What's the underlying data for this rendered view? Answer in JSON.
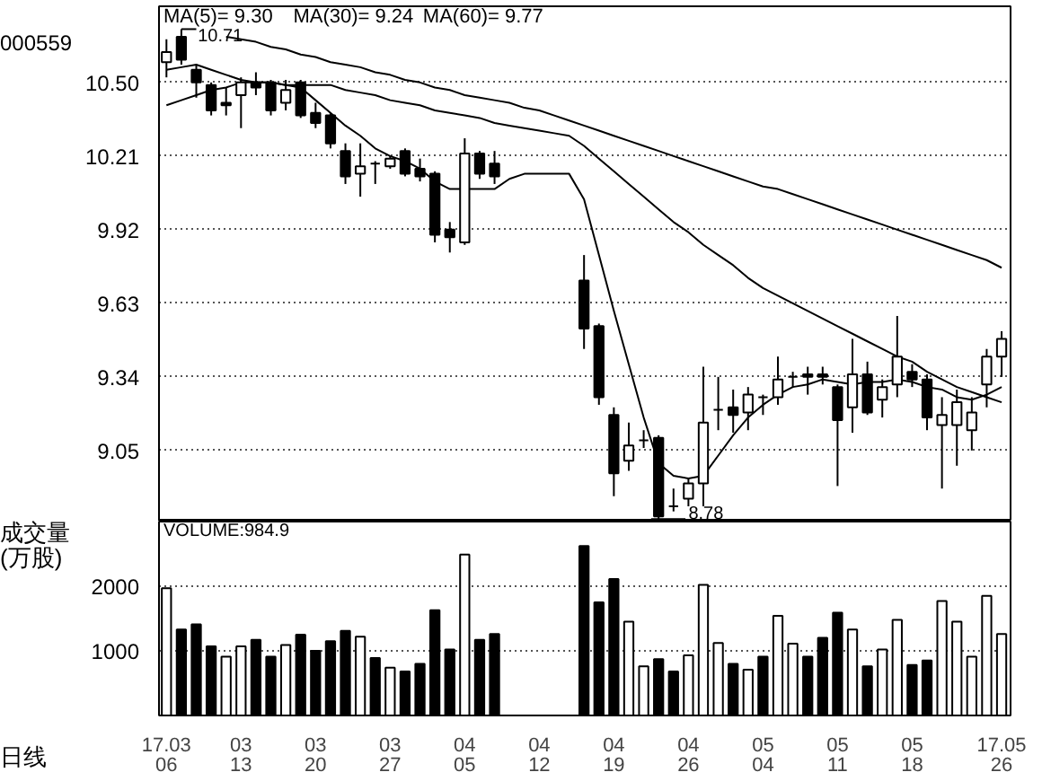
{
  "chart_data": [
    {
      "type": "candlestick",
      "subtitle": "000559",
      "tick_labels": "y",
      "grid": "y",
      "categories": [
        null,
        null,
        null,
        null,
        null,
        null,
        null,
        null,
        null,
        null,
        null,
        null,
        null,
        null,
        null,
        null,
        null,
        null,
        null,
        null,
        null,
        null,
        null,
        null,
        null,
        null,
        null,
        null,
        null,
        null,
        null,
        null,
        null,
        null,
        null,
        null,
        null,
        null,
        null,
        null,
        null,
        null,
        null,
        null,
        null,
        null,
        null,
        null,
        null,
        null,
        null,
        null,
        null,
        null,
        null,
        null,
        null
      ],
      "ylim": [
        8.77,
        10.8
      ],
      "yticks": [
        9.05,
        9.34,
        9.63,
        9.92,
        10.21,
        {
          "value": 10.5,
          "label": "10.50"
        }
      ],
      "ohlc": [
        [
          10.58,
          10.67,
          10.52,
          10.62
        ],
        [
          10.68,
          10.71,
          10.57,
          10.59
        ],
        [
          10.55,
          10.57,
          10.44,
          10.5
        ],
        [
          10.49,
          10.5,
          10.37,
          10.39
        ],
        [
          10.41,
          10.48,
          10.37,
          10.42
        ],
        [
          10.45,
          10.52,
          10.32,
          10.5
        ],
        [
          10.5,
          10.54,
          10.45,
          10.48
        ],
        [
          10.5,
          10.51,
          10.37,
          10.39
        ],
        [
          10.42,
          10.51,
          10.39,
          10.47
        ],
        [
          10.5,
          10.51,
          10.36,
          10.37
        ],
        [
          10.38,
          10.42,
          10.32,
          10.34
        ],
        [
          10.37,
          10.38,
          10.24,
          10.26
        ],
        [
          10.23,
          10.26,
          10.1,
          10.13
        ],
        [
          10.14,
          10.26,
          10.05,
          10.17
        ],
        [
          10.18,
          10.19,
          10.1,
          10.18
        ],
        [
          10.17,
          10.21,
          10.16,
          10.2
        ],
        [
          10.23,
          10.24,
          10.13,
          10.14
        ],
        [
          10.16,
          10.2,
          10.11,
          10.13
        ],
        [
          10.14,
          10.15,
          9.87,
          9.9
        ],
        [
          9.92,
          9.95,
          9.83,
          9.89
        ],
        [
          9.87,
          10.28,
          9.86,
          10.22
        ],
        [
          10.22,
          10.23,
          10.12,
          10.14
        ],
        [
          10.18,
          10.23,
          10.1,
          10.13
        ],
        null,
        null,
        null,
        null,
        null,
        [
          9.72,
          9.82,
          9.45,
          9.53
        ],
        [
          9.54,
          9.55,
          9.23,
          9.26
        ],
        [
          9.19,
          9.22,
          8.87,
          8.96
        ],
        [
          9.01,
          9.16,
          8.97,
          9.07
        ],
        [
          9.09,
          9.13,
          9.06,
          9.09
        ],
        [
          9.1,
          9.11,
          8.78,
          8.79
        ],
        [
          8.83,
          8.9,
          8.81,
          8.83
        ],
        [
          8.86,
          8.94,
          8.83,
          8.92
        ],
        [
          8.92,
          9.38,
          8.83,
          9.16
        ],
        [
          9.21,
          9.34,
          9.13,
          9.21
        ],
        [
          9.22,
          9.29,
          9.12,
          9.19
        ],
        [
          9.2,
          9.3,
          9.13,
          9.27
        ],
        [
          9.26,
          9.27,
          9.19,
          9.26
        ],
        [
          9.26,
          9.42,
          9.23,
          9.33
        ],
        [
          9.34,
          9.36,
          9.3,
          9.34
        ],
        [
          9.34,
          9.38,
          9.27,
          9.35
        ],
        [
          9.35,
          9.38,
          9.31,
          9.34
        ],
        [
          9.3,
          9.31,
          8.91,
          9.17
        ],
        [
          9.22,
          9.49,
          9.12,
          9.35
        ],
        [
          9.35,
          9.4,
          9.19,
          9.2
        ],
        [
          9.25,
          9.33,
          9.18,
          9.3
        ],
        [
          9.31,
          9.58,
          9.26,
          9.42
        ],
        [
          9.36,
          9.39,
          9.3,
          9.33
        ],
        [
          9.33,
          9.35,
          9.13,
          9.18
        ],
        [
          9.15,
          9.26,
          8.9,
          9.19
        ],
        [
          9.15,
          9.29,
          8.99,
          9.24
        ],
        [
          9.13,
          9.26,
          9.05,
          9.2
        ],
        [
          9.31,
          9.45,
          9.22,
          9.42
        ],
        [
          9.42,
          9.52,
          9.34,
          9.49
        ]
      ],
      "colors": [
        "#ffffff",
        "#000000",
        "#000000",
        "#000000",
        "#000000",
        "#ffffff",
        "#000000",
        "#000000",
        "#ffffff",
        "#000000",
        "#000000",
        "#000000",
        "#000000",
        "#ffffff",
        "#000000",
        "#ffffff",
        "#000000",
        "#000000",
        "#000000",
        "#000000",
        "#ffffff",
        "#000000",
        "#000000",
        null,
        null,
        null,
        null,
        null,
        "#000000",
        "#000000",
        "#000000",
        "#ffffff",
        "#000000",
        "#000000",
        "#000000",
        "#ffffff",
        "#ffffff",
        "#000000",
        "#000000",
        "#ffffff",
        "#000000",
        "#ffffff",
        "#000000",
        "#000000",
        "#000000",
        "#000000",
        "#ffffff",
        "#000000",
        "#ffffff",
        "#ffffff",
        "#000000",
        "#000000",
        "#ffffff",
        "#ffffff",
        "#ffffff",
        "#ffffff",
        "#ffffff"
      ],
      "series": [
        {
          "type": "line",
          "color": "#000000",
          "values": [
            10.55,
            10.56,
            10.57,
            10.55,
            10.53,
            10.51,
            10.5,
            10.5,
            10.49,
            10.48,
            10.43,
            10.38,
            10.33,
            10.29,
            10.24,
            10.21,
            10.19,
            10.16,
            10.11,
            10.08,
            10.08,
            10.08,
            10.08,
            10.12,
            10.14,
            10.14,
            10.14,
            10.14,
            10.04,
            9.82,
            9.6,
            9.39,
            9.18,
            9.0,
            8.95,
            8.94,
            8.95,
            9.03,
            9.11,
            9.18,
            9.23,
            9.27,
            9.3,
            9.31,
            9.33,
            9.32,
            9.31,
            9.32,
            9.32,
            9.33,
            9.32,
            9.3,
            9.29,
            9.26,
            9.25,
            9.27,
            9.3
          ]
        },
        {
          "type": "line",
          "color": "#000000",
          "values": [
            10.41,
            10.43,
            10.45,
            10.47,
            10.48,
            10.5,
            10.5,
            10.5,
            10.49,
            10.49,
            10.49,
            10.49,
            10.47,
            10.46,
            10.45,
            10.43,
            10.42,
            10.41,
            10.39,
            10.38,
            10.37,
            10.36,
            10.34,
            10.33,
            10.32,
            10.31,
            10.3,
            10.29,
            10.25,
            10.2,
            10.15,
            10.1,
            10.05,
            10.0,
            9.95,
            9.91,
            9.86,
            9.82,
            9.78,
            9.73,
            9.69,
            9.66,
            9.63,
            9.6,
            9.57,
            9.54,
            9.51,
            9.48,
            9.45,
            9.42,
            9.4,
            9.36,
            9.33,
            9.3,
            9.28,
            9.26,
            9.24
          ]
        },
        {
          "type": "line",
          "color": "#000000",
          "values": [
            null,
            null,
            null,
            null,
            10.68,
            10.67,
            10.66,
            10.64,
            10.63,
            10.61,
            10.6,
            10.58,
            10.57,
            10.56,
            10.54,
            10.53,
            10.51,
            10.5,
            10.48,
            10.47,
            10.45,
            10.44,
            10.43,
            10.42,
            10.4,
            10.39,
            10.37,
            10.35,
            10.33,
            10.31,
            10.29,
            10.27,
            10.25,
            10.23,
            10.21,
            10.19,
            10.17,
            10.15,
            10.13,
            10.11,
            10.09,
            10.08,
            10.06,
            10.04,
            10.02,
            10.0,
            9.98,
            9.96,
            9.94,
            9.92,
            9.9,
            9.88,
            9.86,
            9.84,
            9.82,
            9.8,
            9.77
          ]
        }
      ],
      "annotations": [
        "MA(5)=  9.30",
        "MA(30)=  9.24",
        "MA(60)=  9.77",
        "10.71",
        "8.78"
      ]
    },
    {
      "type": "bar",
      "ylabel": "成交量\n(万股)",
      "grid": "y",
      "categories": [
        "17.03\n06",
        null,
        null,
        null,
        null,
        "03\n13",
        null,
        null,
        null,
        null,
        "03\n20",
        null,
        null,
        null,
        null,
        "03\n27",
        null,
        null,
        null,
        null,
        "04\n05",
        null,
        null,
        null,
        null,
        "04\n12",
        null,
        null,
        null,
        null,
        "04\n19",
        null,
        null,
        null,
        null,
        "04\n26",
        null,
        null,
        null,
        null,
        "05\n04",
        null,
        null,
        null,
        null,
        "05\n11",
        null,
        null,
        null,
        null,
        "05\n18",
        null,
        null,
        null,
        null,
        null,
        "17.05\n26"
      ],
      "ylim": [
        0,
        3000
      ],
      "yticks": [
        1000,
        2000
      ],
      "values": [
        1970,
        1330,
        1410,
        1070,
        910,
        1070,
        1170,
        910,
        1090,
        1250,
        1000,
        1150,
        1310,
        1220,
        890,
        740,
        680,
        800,
        1630,
        1020,
        2490,
        1170,
        1260,
        null,
        null,
        null,
        null,
        null,
        2620,
        1750,
        2110,
        1450,
        760,
        870,
        680,
        930,
        2020,
        1120,
        800,
        710,
        910,
        1540,
        1110,
        910,
        1200,
        1590,
        1330,
        760,
        1020,
        1480,
        780,
        850,
        1770,
        1450,
        910,
        1850,
        1260
      ],
      "colors": [
        "#ffffff",
        "#000000",
        "#000000",
        "#000000",
        "#ffffff",
        "#ffffff",
        "#000000",
        "#000000",
        "#ffffff",
        "#000000",
        "#000000",
        "#000000",
        "#000000",
        "#ffffff",
        "#000000",
        "#ffffff",
        "#000000",
        "#000000",
        "#000000",
        "#000000",
        "#ffffff",
        "#000000",
        "#000000",
        null,
        null,
        null,
        null,
        null,
        "#000000",
        "#000000",
        "#000000",
        "#ffffff",
        "#ffffff",
        "#000000",
        "#000000",
        "#ffffff",
        "#ffffff",
        "#ffffff",
        "#000000",
        "#ffffff",
        "#000000",
        "#ffffff",
        "#ffffff",
        "#000000",
        "#000000",
        "#000000",
        "#ffffff",
        "#000000",
        "#ffffff",
        "#ffffff",
        "#000000",
        "#000000",
        "#ffffff",
        "#ffffff",
        "#ffffff",
        "#ffffff",
        "#ffffff"
      ],
      "annotations": [
        "VOLUME:984.9",
        "日线"
      ]
    }
  ]
}
